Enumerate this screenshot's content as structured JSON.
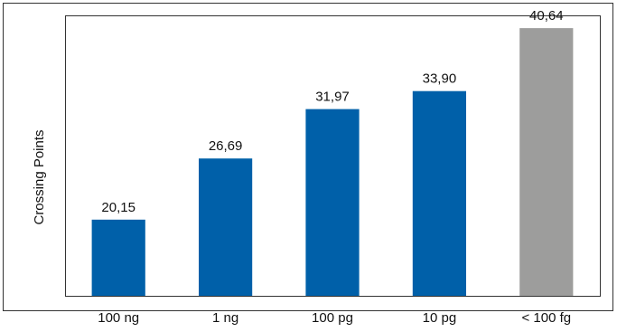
{
  "chart_data": {
    "type": "bar",
    "title": "",
    "xlabel": "",
    "ylabel": "Crossing Points",
    "categories": [
      "100 ng",
      "1 ng",
      "100 pg",
      "10 pg",
      "< 100 fg"
    ],
    "values": [
      20.15,
      26.69,
      31.97,
      33.9,
      40.64
    ],
    "value_labels": [
      "20,15",
      "26,69",
      "31,97",
      "33,90",
      "40,64"
    ],
    "bar_colors": [
      "#0060a9",
      "#0060a9",
      "#0060a9",
      "#0060a9",
      "#9d9d9c"
    ],
    "ylim": [
      12,
      42
    ],
    "grid": false,
    "legend": "none"
  }
}
